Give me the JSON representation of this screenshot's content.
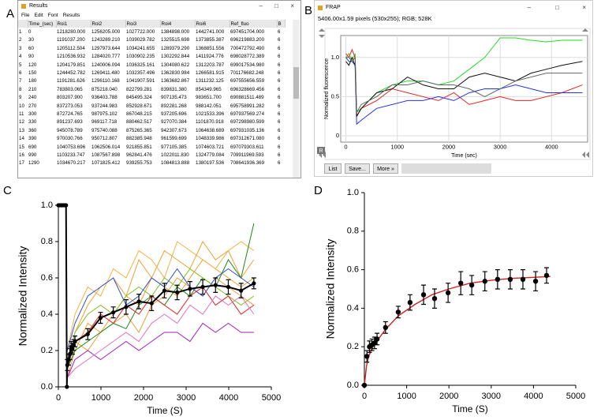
{
  "panel_labels": [
    "A",
    "B",
    "C",
    "D"
  ],
  "results_window": {
    "title": "Results",
    "menu": [
      "File",
      "Edit",
      "Font",
      "Results"
    ],
    "columns": [
      "Time_(sec)",
      "Roi1",
      "Roi2",
      "Roi3",
      "Roi4",
      "Roi6",
      "Ref_fluo",
      "B"
    ],
    "rows": [
      [
        "1",
        "0",
        "1218280.000",
        "1256205.000",
        "1027722.000",
        "1384898.000",
        "1442741.000",
        "697451704.000",
        "6"
      ],
      [
        "2",
        "30",
        "1191037.200",
        "1243289.210",
        "1039029.782",
        "1325515.698",
        "1373855.387",
        "696219883.200",
        "6"
      ],
      [
        "3",
        "60",
        "1205112.504",
        "1297973.644",
        "1034241.655",
        "1289379.290",
        "1368851.556",
        "700472792.490",
        "6"
      ],
      [
        "4",
        "90",
        "1210536.932",
        "1284020.777",
        "1030902.235",
        "1302292.844",
        "1411924.776",
        "698028772.389",
        "6"
      ],
      [
        "5",
        "120",
        "1204179.851",
        "1240006.094",
        "1036325.161",
        "1304080.622",
        "1312203.787",
        "699017534.980",
        "6"
      ],
      [
        "6",
        "150",
        "1244452.782",
        "1269411.480",
        "1032357.496",
        "1362830.984",
        "1266581.915",
        "701176682.248",
        "6"
      ],
      [
        "7",
        "180",
        "1191281.626",
        "1296110.168",
        "1041907.591",
        "1363682.867",
        "1311232.125",
        "697555656.559",
        "6"
      ],
      [
        "8",
        "210",
        "783803.065",
        "875218.040",
        "822799.281",
        "839831.380",
        "854349.965",
        "696328669.456",
        "6"
      ],
      [
        "9",
        "240",
        "803207.900",
        "936403.788",
        "845495.324",
        "907135.473",
        "983651.700",
        "690881511.489",
        "6"
      ],
      [
        "10",
        "270",
        "837273.053",
        "937244.983",
        "852928.671",
        "892281.268",
        "988142.051",
        "695758991.282",
        "6"
      ],
      [
        "11",
        "300",
        "872724.765",
        "987975.102",
        "867048.215",
        "937205.696",
        "1021533.396",
        "697937569.274",
        "6"
      ],
      [
        "12",
        "330",
        "891237.693",
        "969117.718",
        "880462.517",
        "927070.384",
        "1101870.918",
        "697298980.599",
        "6"
      ],
      [
        "13",
        "360",
        "945078.789",
        "975740.088",
        "875265.365",
        "942307.673",
        "1064638.689",
        "697931035.136",
        "6"
      ],
      [
        "14",
        "390",
        "970030.766",
        "950712.807",
        "882385.948",
        "961599.699",
        "1048339.986",
        "697312671.080",
        "6"
      ],
      [
        "15",
        "690",
        "1040753.696",
        "1062506.014",
        "921855.851",
        "977105.385",
        "1074603.721",
        "697079303.611",
        "6"
      ],
      [
        "16",
        "990",
        "1103233.747",
        "1087567.898",
        "962841.476",
        "1022011.830",
        "1324779.084",
        "709911969.593",
        "6"
      ],
      [
        "17",
        "1290",
        "1034670.217",
        "1071825.412",
        "939255.753",
        "1084813.888",
        "1380197.536",
        "708641936.369",
        "6"
      ]
    ]
  },
  "frap_window": {
    "title": "FRAP",
    "info": "5406.00x1.59 pixels (530x255); RGB; 528K",
    "corner_label": "R",
    "buttons": [
      "List",
      "Save...",
      "More »"
    ]
  },
  "chart_data": [
    {
      "type": "line",
      "xlabel": "Time (sec)",
      "ylabel": "Normalized fluorescence",
      "grid": true,
      "xlim": [
        -100,
        4700
      ],
      "ylim": [
        -0.08,
        1.28
      ],
      "xticks": [
        0,
        1000,
        2000,
        3000,
        4000
      ],
      "yticks": [
        0,
        0.5,
        {
          "value": 1,
          "label": "1.0"
        }
      ],
      "series": [
        {
          "color": "#22dd22",
          "x": [
            0,
            60,
            120,
            180,
            210,
            300,
            600,
            900,
            1200,
            1500,
            1800,
            2100,
            2400,
            2700,
            3000,
            3300,
            3600,
            3900,
            4200,
            4600
          ],
          "values": [
            1.0,
            1.05,
            0.95,
            1.05,
            0.3,
            0.35,
            0.55,
            0.65,
            0.7,
            0.7,
            0.65,
            0.7,
            0.85,
            1.0,
            1.25,
            1.25,
            1.22,
            1.2,
            1.22,
            1.22
          ]
        },
        {
          "color": "#ee2222",
          "x": [
            0,
            60,
            120,
            180,
            210,
            300,
            600,
            900,
            1200,
            1500,
            1800,
            2100,
            2400,
            2700,
            3000,
            3300,
            3600,
            3900,
            4200,
            4600
          ],
          "values": [
            1.05,
            1.0,
            1.1,
            1.0,
            0.25,
            0.35,
            0.45,
            0.6,
            0.55,
            0.5,
            0.45,
            0.55,
            0.4,
            0.45,
            0.5,
            0.45,
            0.45,
            0.5,
            0.55,
            0.65
          ]
        },
        {
          "color": "#2233ee",
          "x": [
            0,
            60,
            120,
            180,
            210,
            300,
            600,
            900,
            1200,
            1500,
            1800,
            2100,
            2400,
            2700,
            3000,
            3300,
            3600,
            3900,
            4200,
            4600
          ],
          "values": [
            1.0,
            0.95,
            0.95,
            0.9,
            0.15,
            0.2,
            0.35,
            0.4,
            0.45,
            0.45,
            0.5,
            0.45,
            0.55,
            0.6,
            0.6,
            0.65,
            0.6,
            0.55,
            0.55,
            0.55
          ]
        },
        {
          "color": "#111111",
          "x": [
            0,
            60,
            120,
            180,
            210,
            300,
            600,
            900,
            1200,
            1500,
            1800,
            2100,
            2400,
            2700,
            3000,
            3300,
            3600,
            3900,
            4200,
            4600
          ],
          "values": [
            0.95,
            0.9,
            1.0,
            0.9,
            0.25,
            0.35,
            0.55,
            0.6,
            0.75,
            0.65,
            0.6,
            0.6,
            0.75,
            0.8,
            0.75,
            0.7,
            0.8,
            0.85,
            0.9,
            0.95
          ]
        },
        {
          "color": "#666666",
          "x": [
            0,
            60,
            120,
            180,
            210,
            300,
            600,
            900,
            1200,
            1500,
            1800,
            2100,
            2400,
            2700,
            3000,
            3300,
            3600,
            3900,
            4200,
            4600
          ],
          "values": [
            1.0,
            1.0,
            0.95,
            1.0,
            0.3,
            0.4,
            0.5,
            0.65,
            0.65,
            0.7,
            0.65,
            0.65,
            0.6,
            0.5,
            0.6,
            0.7,
            0.75,
            0.8,
            0.8,
            0.8
          ]
        }
      ]
    },
    {
      "type": "line",
      "xlabel": "Time (S)",
      "ylabel": "Normalized Intensity",
      "grid": false,
      "xlim": [
        0,
        5000
      ],
      "ylim": [
        0,
        1
      ],
      "xticks": [
        0,
        1000,
        2000,
        3000,
        4000,
        5000
      ],
      "yticks": [
        {
          "value": 0,
          "label": "0.0"
        },
        0.2,
        0.4,
        0.6,
        0.8,
        {
          "value": 1,
          "label": "1.0"
        }
      ],
      "series": [
        {
          "color": "#f0a030",
          "x": [
            210,
            390,
            690,
            990,
            1290,
            1590,
            1890,
            2190,
            2490,
            2790,
            3090,
            3390,
            3690,
            3990,
            4290,
            4590
          ],
          "values": [
            0.1,
            0.3,
            0.45,
            0.55,
            0.6,
            0.5,
            0.7,
            0.6,
            0.75,
            0.7,
            0.65,
            0.8,
            0.7,
            0.75,
            0.6,
            0.7
          ]
        },
        {
          "color": "#f0a030",
          "x": [
            210,
            390,
            690,
            990,
            1290,
            1590,
            1890,
            2190,
            2490,
            2790,
            3090,
            3390,
            3690,
            3990,
            4290,
            4590
          ],
          "values": [
            0.05,
            0.2,
            0.35,
            0.3,
            0.4,
            0.5,
            0.45,
            0.6,
            0.55,
            0.5,
            0.6,
            0.7,
            0.65,
            0.6,
            0.55,
            0.6
          ]
        },
        {
          "color": "#e8a040",
          "x": [
            210,
            390,
            690,
            990,
            1290,
            1590,
            1890,
            2190,
            2490,
            2790,
            3090,
            3390,
            3690,
            3990,
            4290,
            4590
          ],
          "values": [
            0.15,
            0.25,
            0.2,
            0.3,
            0.35,
            0.4,
            0.3,
            0.45,
            0.5,
            0.6,
            0.55,
            0.5,
            0.6,
            0.55,
            0.5,
            0.45
          ]
        },
        {
          "color": "#f5b040",
          "x": [
            210,
            390,
            690,
            990,
            1290,
            1590,
            1890,
            2190,
            2490,
            2790,
            3090,
            3390,
            3690,
            3990,
            4290,
            4590
          ],
          "values": [
            0.2,
            0.4,
            0.55,
            0.5,
            0.65,
            0.6,
            0.75,
            0.7,
            0.6,
            0.8,
            0.75,
            0.7,
            0.65,
            0.75,
            0.8,
            0.75
          ]
        },
        {
          "color": "#1e8a1e",
          "x": [
            210,
            390,
            690,
            990,
            1290,
            1590,
            1890,
            2190,
            2490,
            2790,
            3090,
            3390,
            3690,
            3990,
            4290,
            4590
          ],
          "values": [
            0.1,
            0.2,
            0.25,
            0.3,
            0.35,
            0.32,
            0.45,
            0.5,
            0.45,
            0.55,
            0.5,
            0.6,
            0.55,
            0.7,
            0.6,
            0.9
          ]
        },
        {
          "color": "#80c020",
          "x": [
            210,
            390,
            690,
            990,
            1290,
            1590,
            1890,
            2190,
            2490,
            2790,
            3090,
            3390,
            3690,
            3990,
            4290,
            4590
          ],
          "values": [
            0.1,
            0.3,
            0.4,
            0.45,
            0.4,
            0.5,
            0.55,
            0.5,
            0.6,
            0.55,
            0.65,
            0.6,
            0.55,
            0.5,
            0.45,
            0.5
          ]
        },
        {
          "color": "#3050d0",
          "x": [
            210,
            390,
            690,
            990,
            1290,
            1590,
            1890,
            2190,
            2490,
            2790,
            3090,
            3390,
            3690,
            3990,
            4290,
            4590
          ],
          "values": [
            0.2,
            0.35,
            0.5,
            0.55,
            0.6,
            0.45,
            0.5,
            0.6,
            0.55,
            0.65,
            0.55,
            0.5,
            0.6,
            0.65,
            0.6,
            0.55
          ]
        },
        {
          "color": "#a020c0",
          "x": [
            210,
            390,
            690,
            990,
            1290,
            1590,
            1890,
            2190,
            2490,
            2790,
            3090,
            3390,
            3690,
            3990,
            4290,
            4590
          ],
          "values": [
            0.05,
            0.15,
            0.2,
            0.15,
            0.2,
            0.25,
            0.2,
            0.25,
            0.3,
            0.3,
            0.25,
            0.35,
            0.3,
            0.35,
            0.3,
            0.3
          ]
        },
        {
          "color": "#e02020",
          "x": [
            210,
            390,
            690,
            990,
            1290,
            1590,
            1890,
            2190,
            2490,
            2790,
            3090,
            3390,
            3690,
            3990,
            4290,
            4590
          ],
          "values": [
            0.1,
            0.25,
            0.3,
            0.4,
            0.35,
            0.45,
            0.4,
            0.5,
            0.45,
            0.4,
            0.5,
            0.55,
            0.45,
            0.5,
            0.4,
            0.45
          ]
        },
        {
          "color": "#e070c0",
          "x": [
            210,
            390,
            690,
            990,
            1290,
            1590,
            1890,
            2190,
            2490,
            2790,
            3090,
            3390,
            3690,
            3990,
            4290,
            4590
          ],
          "values": [
            0.05,
            0.1,
            0.15,
            0.2,
            0.25,
            0.3,
            0.25,
            0.35,
            0.4,
            0.35,
            0.45,
            0.4,
            0.5,
            0.45,
            0.5,
            0.4
          ]
        },
        {
          "color": "#000000",
          "marker": true,
          "x": [
            0,
            30,
            60,
            90,
            120,
            150,
            180,
            200,
            210,
            240,
            270,
            300,
            330,
            360,
            390,
            690,
            990,
            1290,
            1590,
            1890,
            2190,
            2490,
            2790,
            3090,
            3390,
            3690,
            3990,
            4290,
            4590
          ],
          "values": [
            1,
            1,
            1,
            1,
            1,
            1,
            1,
            0,
            0.12,
            0.15,
            0.18,
            0.22,
            0.21,
            0.23,
            0.25,
            0.29,
            0.38,
            0.41,
            0.44,
            0.47,
            0.46,
            0.53,
            0.52,
            0.54,
            0.55,
            0.56,
            0.55,
            0.53,
            0.57
          ],
          "errors": [
            null,
            null,
            null,
            null,
            null,
            null,
            null,
            null,
            0.03,
            0.03,
            0.03,
            0.03,
            0.03,
            0.03,
            0.03,
            0.03,
            0.03,
            0.03,
            0.04,
            0.04,
            0.04,
            0.04,
            0.04,
            0.04,
            0.04,
            0.04,
            0.04,
            0.04,
            0.03
          ]
        }
      ]
    },
    {
      "type": "line",
      "xlabel": "Time (S)",
      "ylabel": "Normalized Intensity",
      "grid": false,
      "xlim": [
        0,
        5000
      ],
      "ylim": [
        0,
        1
      ],
      "xticks": [
        0,
        1000,
        2000,
        3000,
        4000,
        5000
      ],
      "yticks": [
        {
          "value": 0,
          "label": "0.0"
        },
        0.2,
        0.4,
        0.6,
        0.8,
        {
          "value": 1,
          "label": "1.0"
        }
      ],
      "series": [
        {
          "color": "#d62020",
          "x": [
            0,
            50,
            100,
            200,
            300,
            500,
            800,
            1200,
            1600,
            2000,
            2500,
            3000,
            3500,
            4000,
            4400
          ],
          "values": [
            0,
            0.1,
            0.15,
            0.2,
            0.23,
            0.29,
            0.36,
            0.42,
            0.47,
            0.5,
            0.53,
            0.545,
            0.555,
            0.56,
            0.565
          ]
        },
        {
          "color": "#000000",
          "marker": true,
          "line": false,
          "x": [
            0,
            60,
            120,
            180,
            240,
            300,
            500,
            800,
            1080,
            1400,
            1660,
            1980,
            2280,
            2540,
            2850,
            3150,
            3450,
            3750,
            4050,
            4310
          ],
          "values": [
            0,
            0.15,
            0.2,
            0.21,
            0.22,
            0.24,
            0.3,
            0.38,
            0.43,
            0.47,
            0.45,
            0.48,
            0.53,
            0.52,
            0.54,
            0.55,
            0.55,
            0.55,
            0.54,
            0.57
          ],
          "errors": [
            null,
            0.03,
            0.03,
            0.03,
            0.03,
            0.03,
            0.03,
            0.03,
            0.04,
            0.05,
            0.05,
            0.05,
            0.06,
            0.05,
            0.05,
            0.05,
            0.05,
            0.05,
            0.05,
            0.04
          ]
        }
      ]
    }
  ]
}
